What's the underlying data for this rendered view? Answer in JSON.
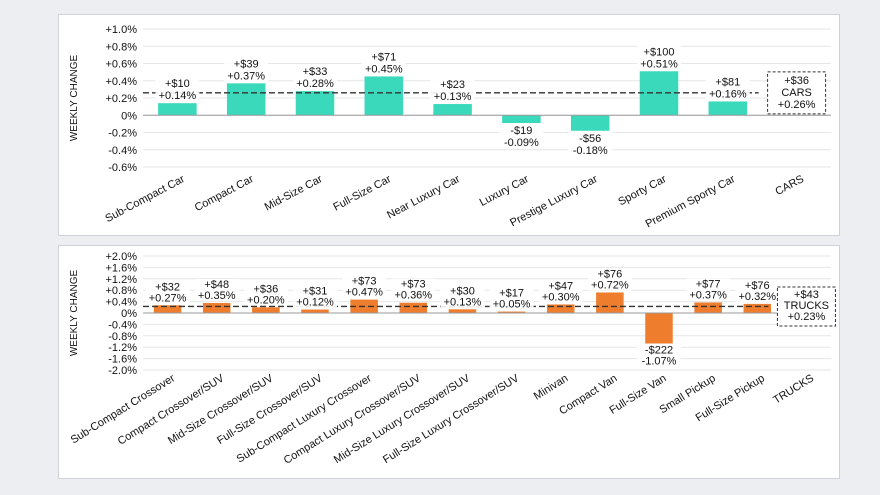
{
  "chart_data": [
    {
      "type": "bar",
      "ylabel": "WEEKLY CHANGE",
      "ylim": [
        -0.6,
        1.0
      ],
      "y_ticks": [
        "+1.0%",
        "+0.8%",
        "+0.6%",
        "+0.4%",
        "+0.2%",
        "0%",
        "-0.2%",
        "-0.4%",
        "-0.6%"
      ],
      "bar_color": "#3ad9bc",
      "categories": [
        "Sub-Compact Car",
        "Compact Car",
        "Mid-Size Car",
        "Full-Size Car",
        "Near Luxury Car",
        "Luxury Car",
        "Prestige Luxury Car",
        "Sporty Car",
        "Premium Sporty Car"
      ],
      "values": [
        0.14,
        0.37,
        0.28,
        0.45,
        0.13,
        -0.09,
        -0.18,
        0.51,
        0.16
      ],
      "dollar_labels": [
        "+$10",
        "+$39",
        "+$33",
        "+$71",
        "+$23",
        "-$19",
        "-$56",
        "+$100",
        "+$81"
      ],
      "pct_labels": [
        "+0.14%",
        "+0.37%",
        "+0.28%",
        "+0.45%",
        "+0.13%",
        "-0.09%",
        "-0.18%",
        "+0.51%",
        "+0.16%"
      ],
      "total": {
        "category": "CARS",
        "value": 0.26,
        "dollar": "+$36",
        "name": "CARS",
        "pct": "+0.26%"
      }
    },
    {
      "type": "bar",
      "ylabel": "WEEKLY CHANGE",
      "ylim": [
        -2.0,
        2.0
      ],
      "y_ticks": [
        "+2.0%",
        "+1.6%",
        "+1.2%",
        "+0.8%",
        "+0.4%",
        "0%",
        "-0.4%",
        "-0.8%",
        "-1.2%",
        "-1.6%",
        "-2.0%"
      ],
      "bar_color": "#ee7d2e",
      "categories": [
        "Sub-Compact Crossover",
        "Compact Crossover/SUV",
        "Mid-Size Crossover/SUV",
        "Full-Size Crossover/SUV",
        "Sub-Compact Luxury Crossover",
        "Compact Luxury Crossover/SUV",
        "Mid-Size Luxury Crossover/SUV",
        "Full-Size Luxury Crossover/SUV",
        "Minivan",
        "Compact Van",
        "Full-Size Van",
        "Small Pickup",
        "Full-Size Pickup"
      ],
      "values": [
        0.27,
        0.35,
        0.2,
        0.12,
        0.47,
        0.36,
        0.13,
        0.05,
        0.3,
        0.72,
        -1.07,
        0.37,
        0.32
      ],
      "dollar_labels": [
        "+$32",
        "+$48",
        "+$36",
        "+$31",
        "+$73",
        "+$73",
        "+$30",
        "+$17",
        "+$47",
        "+$76",
        "-$222",
        "+$77",
        "+$76"
      ],
      "pct_labels": [
        "+0.27%",
        "+0.35%",
        "+0.20%",
        "+0.12%",
        "+0.47%",
        "+0.36%",
        "+0.13%",
        "+0.05%",
        "+0.30%",
        "+0.72%",
        "-1.07%",
        "+0.37%",
        "+0.32%"
      ],
      "total": {
        "category": "TRUCKS",
        "value": 0.23,
        "dollar": "+$43",
        "name": "TRUCKS",
        "pct": "+0.23%"
      }
    }
  ]
}
